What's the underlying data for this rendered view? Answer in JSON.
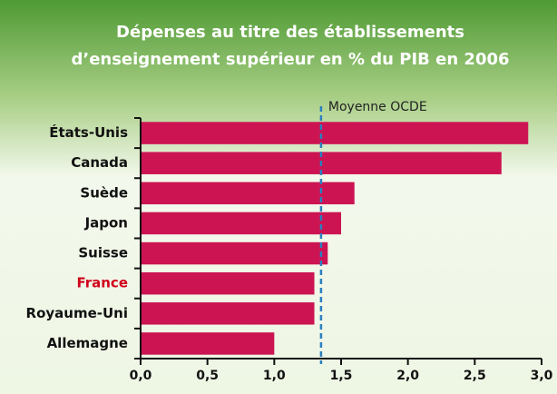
{
  "chart_data": {
    "type": "barh",
    "title": [
      "Dépenses au titre des établissements",
      "d’enseignement supérieur en % du PIB en 2006"
    ],
    "categories": [
      "États-Unis",
      "Canada",
      "Suède",
      "Japon",
      "Suisse",
      "France",
      "Royaume-Uni",
      "Allemagne"
    ],
    "values": [
      2.9,
      2.7,
      1.6,
      1.5,
      1.4,
      1.3,
      1.3,
      1.0
    ],
    "color": "#cc1452",
    "highlight": {
      "index": 5,
      "color": "#d0021b"
    },
    "xlim": [
      0,
      3
    ],
    "xticks": [
      {
        "value": 0,
        "label": "0,0"
      },
      {
        "value": 0.5,
        "label": "0,5"
      },
      {
        "value": 1,
        "label": "1,0"
      },
      {
        "value": 1.5,
        "label": "1,5"
      },
      {
        "value": 2,
        "label": "2,0"
      },
      {
        "value": 2.5,
        "label": "2,5"
      },
      {
        "value": 3,
        "label": "3,0"
      }
    ],
    "reference_line": {
      "label": "Moyenne OCDE",
      "value": 1.35,
      "color": "#2a7fc0"
    }
  }
}
